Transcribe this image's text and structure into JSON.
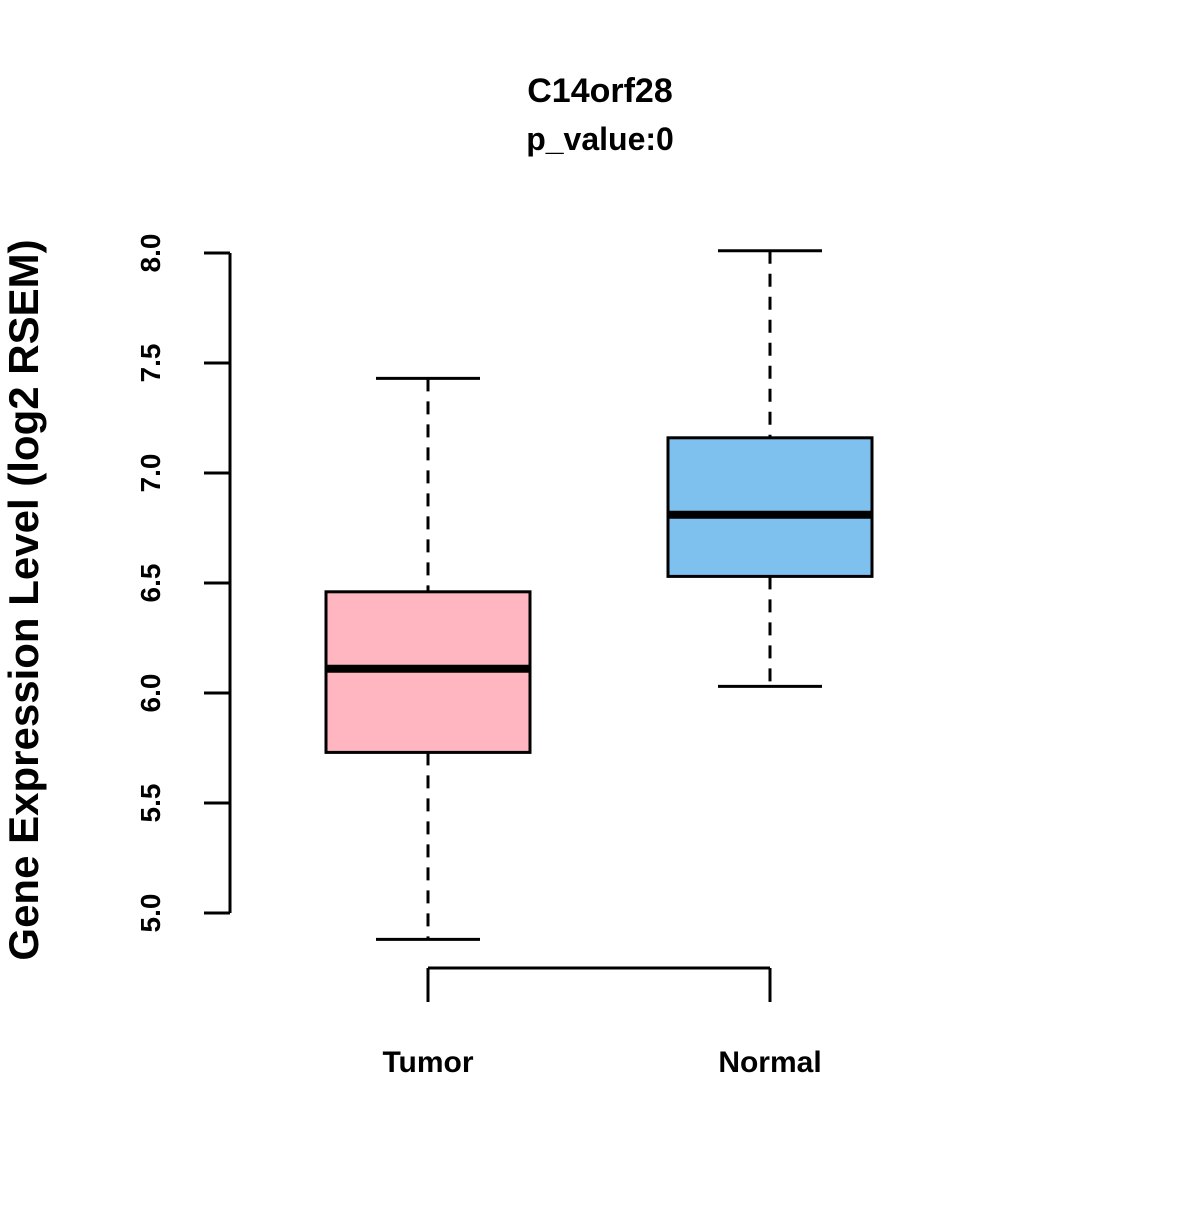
{
  "title": "C14orf28",
  "subtitle": "p_value:0",
  "ylabel": "Gene Expression Level (log2 RSEM)",
  "chart_data": {
    "type": "boxplot",
    "title": "C14orf28",
    "subtitle": "p_value:0",
    "xlabel": "",
    "ylabel": "Gene Expression Level (log2 RSEM)",
    "ylim": [
      4.85,
      8.05
    ],
    "yticks": [
      5.0,
      5.5,
      6.0,
      6.5,
      7.0,
      7.5,
      8.0
    ],
    "grid": false,
    "legend": "none",
    "categories": [
      "Tumor",
      "Normal"
    ],
    "groups": [
      {
        "label": "Tumor",
        "color": "#FFB6C1",
        "lower_whisker": 4.88,
        "q1": 5.73,
        "median": 6.11,
        "q3": 6.46,
        "upper_whisker": 7.43
      },
      {
        "label": "Normal",
        "color": "#7EC0EE",
        "lower_whisker": 6.03,
        "q1": 6.53,
        "median": 6.81,
        "q3": 7.16,
        "upper_whisker": 8.01
      }
    ]
  }
}
